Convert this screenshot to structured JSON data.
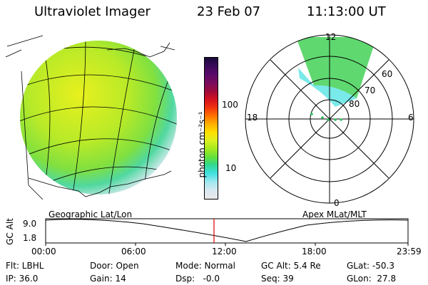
{
  "header": {
    "instrument": "Ultraviolet Imager",
    "date": "23 Feb 07",
    "time": "11:13:00 UT"
  },
  "colorbar": {
    "unit_label": "photon cm⁻²s⁻¹",
    "tick_labels": [
      "100",
      "10"
    ],
    "colors": [
      "#1a0a3a",
      "#3a0a5a",
      "#5a0a6a",
      "#7a0a5a",
      "#a00a3a",
      "#d01020",
      "#f03010",
      "#ff7000",
      "#ffb000",
      "#ffe000",
      "#d8f020",
      "#a0e820",
      "#60e040",
      "#30d890",
      "#40e0e0",
      "#9fe8f0",
      "#d8e8f0",
      "#e8e8e8"
    ]
  },
  "map_left": {
    "caption": "Geographic Lat/Lon"
  },
  "polar_plot": {
    "caption": "Apex MLat/MLT",
    "mlt_labels": [
      "12",
      "18",
      "6",
      "0"
    ],
    "lat_labels": [
      "60",
      "70",
      "80"
    ]
  },
  "altitude_strip": {
    "ylabel": "GC Alt",
    "y_ticks": [
      "9.0",
      "1.8"
    ],
    "x_ticks": [
      "00:00",
      "06:00",
      "12:00",
      "18:00",
      "23:59"
    ],
    "marker_color": "#e00000"
  },
  "info": {
    "flt": "Flt: LBHL",
    "door": "Door: Open",
    "mode": "Mode: Normal",
    "gc_alt": "GC Alt: 5.4 Re",
    "glat": "GLat: -50.3",
    "ip": "IP: 36.0",
    "gain": "Gain: 14",
    "dsp": "Dsp:   -0.0",
    "seq": "Seq: 39",
    "glon": "GLon:  27.8"
  }
}
